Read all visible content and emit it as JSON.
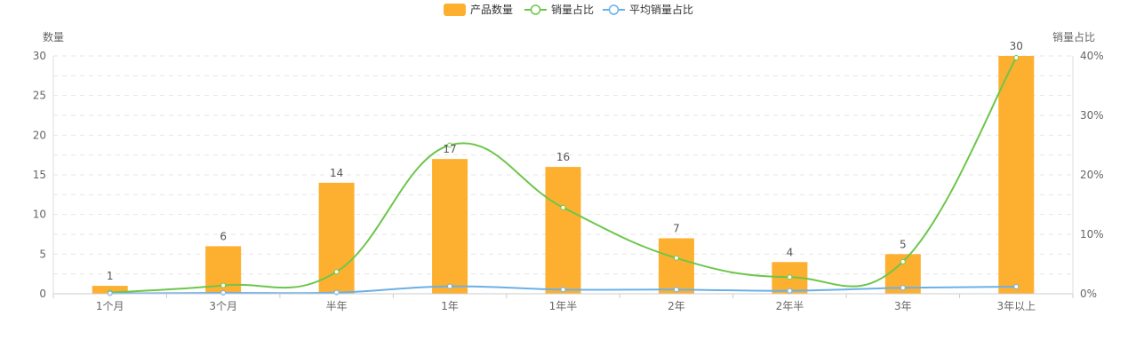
{
  "chart_data": {
    "type": "bar",
    "legend": [
      {
        "name": "产品数量",
        "kind": "bar",
        "color": "#FDB030"
      },
      {
        "name": "销量占比",
        "kind": "line",
        "color": "#6DC64B"
      },
      {
        "name": "平均销量占比",
        "kind": "line",
        "color": "#6AB0E8"
      }
    ],
    "legend_position": "top-center",
    "y_left": {
      "name": "数量",
      "ylim": [
        0,
        30
      ],
      "ticks": [
        "0",
        "5",
        "10",
        "15",
        "20",
        "25",
        "30"
      ]
    },
    "y_right": {
      "name": "销量占比",
      "ylim": [
        0,
        0.4
      ],
      "ticks": [
        "0%",
        "10%",
        "20%",
        "30%",
        "40%"
      ]
    },
    "categories": [
      "1个月",
      "3个月",
      "半年",
      "1年",
      "1年半",
      "2年",
      "2年半",
      "3年",
      "3年以上"
    ],
    "series": [
      {
        "name": "产品数量",
        "axis": "left",
        "values": [
          1,
          6,
          14,
          17,
          16,
          7,
          4,
          5,
          30
        ],
        "data_labels": true
      },
      {
        "name": "销量占比",
        "axis": "right",
        "values": [
          0.002,
          0.014,
          0.037,
          0.25,
          0.145,
          0.06,
          0.028,
          0.054,
          0.397
        ]
      },
      {
        "name": "平均销量占比",
        "axis": "right",
        "values": [
          0.0005,
          0.0015,
          0.002,
          0.0125,
          0.007,
          0.007,
          0.005,
          0.01,
          0.012
        ]
      }
    ],
    "grid": "horizontal-dashed"
  }
}
